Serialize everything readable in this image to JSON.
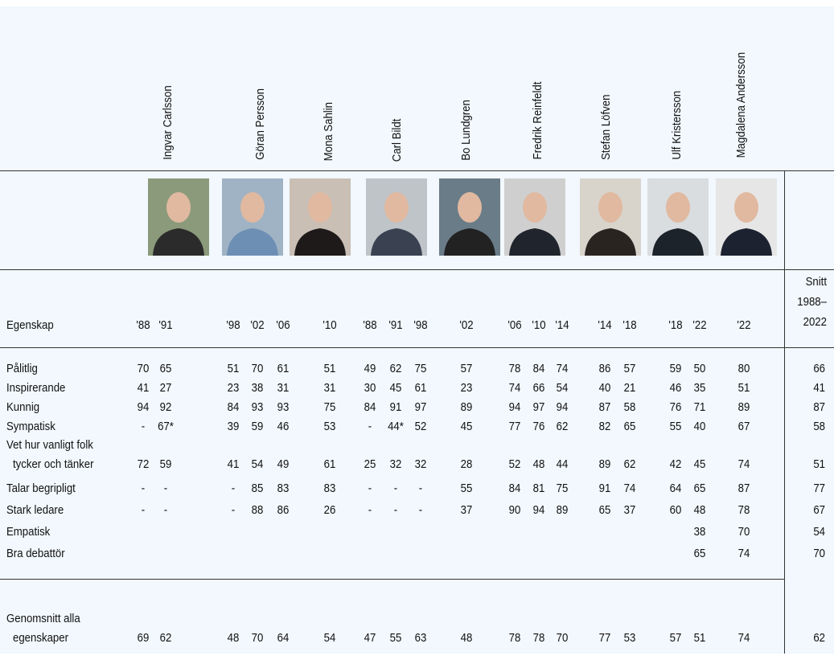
{
  "row_header": "Egenskap",
  "people": [
    {
      "name": "Ingvar Carlsson",
      "years": [
        "'88",
        "'91"
      ]
    },
    {
      "name": "Göran Persson",
      "years": [
        "'98",
        "'02",
        "'06"
      ]
    },
    {
      "name": "Mona Sahlin",
      "years": [
        "'10"
      ]
    },
    {
      "name": "Carl Bildt",
      "years": [
        "'88",
        "'91",
        "'98"
      ]
    },
    {
      "name": "Bo Lundgren",
      "years": [
        "'02"
      ]
    },
    {
      "name": "Fredrik Reinfeldt",
      "years": [
        "'06",
        "'10",
        "'14"
      ]
    },
    {
      "name": "Stefan Löfven",
      "years": [
        "'14",
        "'18"
      ]
    },
    {
      "name": "Ulf Kristersson",
      "years": [
        "'18",
        "'22"
      ]
    },
    {
      "name": "Magdalena Andersson",
      "years": [
        "'22"
      ]
    }
  ],
  "average_header": [
    "Snitt",
    "1988–",
    "2022"
  ],
  "rows": [
    {
      "label": [
        "Pålitlig"
      ],
      "cells": [
        70,
        65,
        51,
        70,
        61,
        51,
        49,
        62,
        75,
        57,
        78,
        84,
        74,
        86,
        57,
        59,
        50,
        80,
        66
      ]
    },
    {
      "label": [
        "Inspirerande"
      ],
      "cells": [
        41,
        27,
        23,
        38,
        31,
        31,
        30,
        45,
        61,
        23,
        74,
        66,
        54,
        40,
        21,
        46,
        35,
        51,
        41
      ]
    },
    {
      "label": [
        "Kunnig"
      ],
      "cells": [
        94,
        92,
        84,
        93,
        93,
        75,
        84,
        91,
        97,
        89,
        94,
        97,
        94,
        87,
        58,
        76,
        71,
        89,
        87
      ]
    },
    {
      "label": [
        "Sympatisk"
      ],
      "cells": [
        "-",
        "67*",
        39,
        59,
        46,
        53,
        "-",
        "44*",
        52,
        45,
        77,
        76,
        62,
        82,
        65,
        55,
        40,
        67,
        58
      ]
    },
    {
      "label": [
        "Vet hur vanligt folk",
        "tycker och tänker"
      ],
      "cells": [
        72,
        59,
        41,
        54,
        49,
        61,
        25,
        32,
        32,
        28,
        52,
        48,
        44,
        89,
        62,
        42,
        45,
        74,
        51
      ]
    },
    {
      "label": [
        "Talar begripligt"
      ],
      "cells": [
        "-",
        "-",
        "-",
        85,
        83,
        83,
        "-",
        "-",
        "-",
        55,
        84,
        81,
        75,
        91,
        74,
        64,
        65,
        87,
        77
      ]
    },
    {
      "label": [
        "Stark ledare"
      ],
      "cells": [
        "-",
        "-",
        "-",
        88,
        86,
        26,
        "-",
        "-",
        "-",
        37,
        90,
        94,
        89,
        65,
        37,
        60,
        48,
        78,
        67
      ]
    },
    {
      "label": [
        "Empatisk"
      ],
      "cells": [
        null,
        null,
        null,
        null,
        null,
        null,
        null,
        null,
        null,
        null,
        null,
        null,
        null,
        null,
        null,
        null,
        38,
        70,
        54
      ]
    },
    {
      "label": [
        "Bra debattör"
      ],
      "cells": [
        null,
        null,
        null,
        null,
        null,
        null,
        null,
        null,
        null,
        null,
        null,
        null,
        null,
        null,
        null,
        null,
        65,
        74,
        70
      ]
    }
  ],
  "summary": {
    "label": [
      "Genomsnitt alla",
      "egenskaper"
    ],
    "cells": [
      69,
      62,
      48,
      70,
      64,
      54,
      47,
      55,
      63,
      48,
      78,
      78,
      70,
      77,
      53,
      57,
      51,
      74,
      62
    ]
  }
}
